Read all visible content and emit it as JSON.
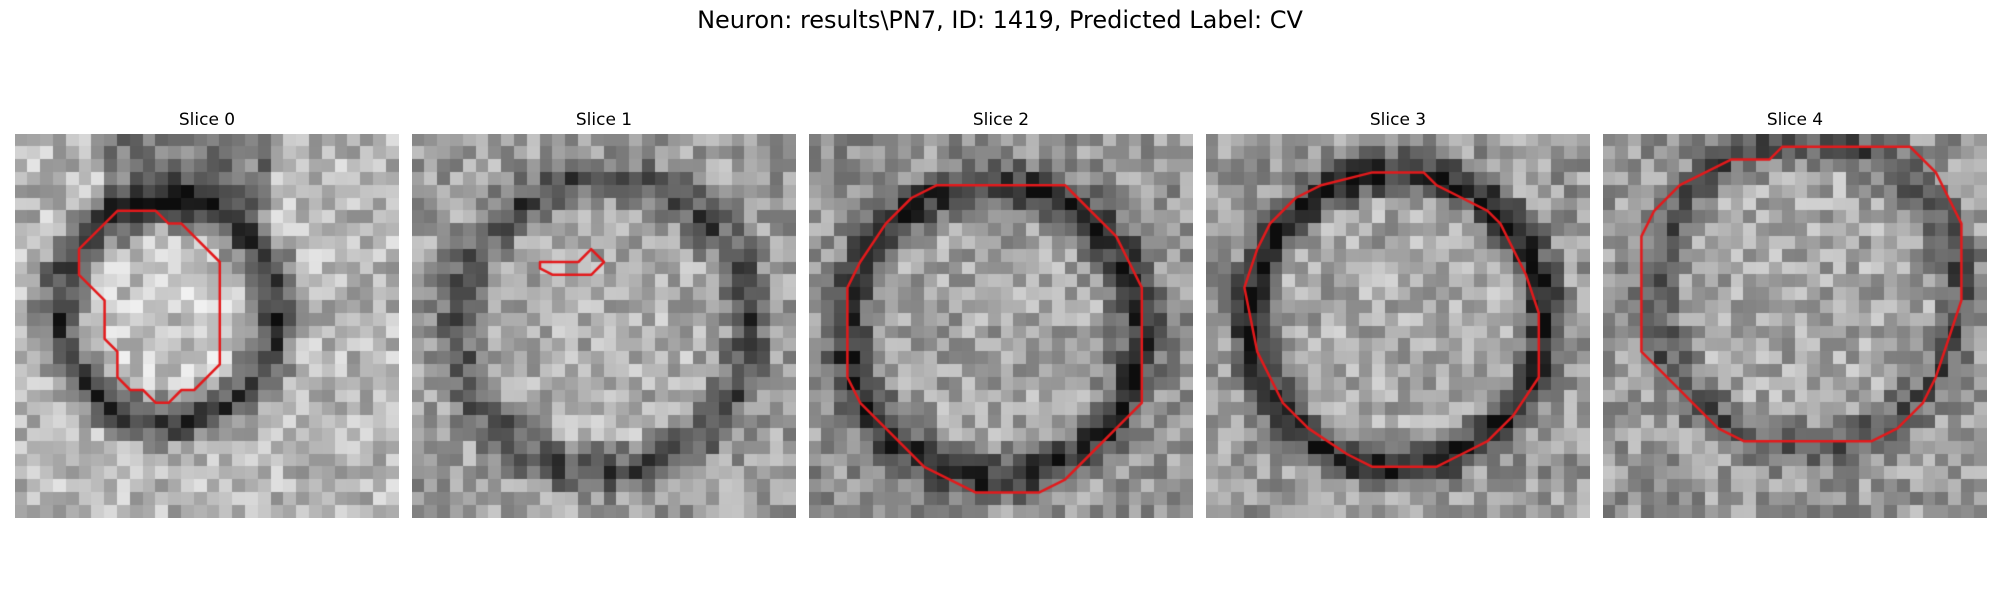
{
  "figure": {
    "title": "Neuron: results\\PN7, ID: 1419, Predicted Label: CV"
  },
  "image_style": {
    "grid_size": 30,
    "colormap": "grayscale",
    "contour_color": "#e31a1c"
  },
  "slices": [
    {
      "title": "Slice 0",
      "contour": [
        [
          8,
          6
        ],
        [
          11,
          6
        ],
        [
          12,
          7
        ],
        [
          13,
          7
        ],
        [
          16,
          10
        ],
        [
          16,
          18
        ],
        [
          14,
          20
        ],
        [
          13,
          20
        ],
        [
          12,
          21
        ],
        [
          11,
          21
        ],
        [
          10,
          20
        ],
        [
          9,
          20
        ],
        [
          8,
          19
        ],
        [
          8,
          17
        ],
        [
          7,
          16
        ],
        [
          7,
          13
        ],
        [
          6,
          12
        ],
        [
          5,
          11
        ],
        [
          5,
          9
        ]
      ]
    },
    {
      "title": "Slice 1",
      "contour": [
        [
          10,
          10
        ],
        [
          13,
          10
        ],
        [
          14,
          9
        ],
        [
          15,
          10
        ],
        [
          14,
          11
        ],
        [
          11,
          11
        ],
        [
          10,
          10.5
        ]
      ]
    },
    {
      "title": "Slice 2",
      "contour": [
        [
          10,
          4
        ],
        [
          20,
          4
        ],
        [
          21,
          5
        ],
        [
          23,
          7
        ],
        [
          24,
          8
        ],
        [
          25,
          10
        ],
        [
          26,
          12
        ],
        [
          26,
          21
        ],
        [
          24,
          23
        ],
        [
          22,
          25
        ],
        [
          20,
          27
        ],
        [
          18,
          28
        ],
        [
          13,
          28
        ],
        [
          11,
          27
        ],
        [
          9,
          26
        ],
        [
          6,
          23
        ],
        [
          4,
          21
        ],
        [
          3,
          19
        ],
        [
          3,
          12
        ],
        [
          4,
          10
        ],
        [
          6,
          7
        ],
        [
          8,
          5
        ]
      ]
    },
    {
      "title": "Slice 3",
      "contour": [
        [
          9,
          4
        ],
        [
          13,
          3
        ],
        [
          17,
          3
        ],
        [
          18,
          4
        ],
        [
          20,
          5
        ],
        [
          22,
          6
        ],
        [
          23,
          7
        ],
        [
          24,
          9
        ],
        [
          25,
          11
        ],
        [
          26,
          14
        ],
        [
          26,
          19
        ],
        [
          24,
          22
        ],
        [
          22,
          24
        ],
        [
          20,
          25
        ],
        [
          18,
          26
        ],
        [
          13,
          26
        ],
        [
          11,
          25
        ],
        [
          8,
          23
        ],
        [
          6,
          21
        ],
        [
          5,
          19
        ],
        [
          4,
          17
        ],
        [
          3,
          12
        ],
        [
          4,
          9
        ],
        [
          5,
          7
        ],
        [
          7,
          5
        ]
      ]
    },
    {
      "title": "Slice 4",
      "contour": [
        [
          10,
          2
        ],
        [
          13,
          2
        ],
        [
          14,
          1
        ],
        [
          24,
          1
        ],
        [
          25,
          2
        ],
        [
          26,
          3
        ],
        [
          27,
          5
        ],
        [
          28,
          7
        ],
        [
          28,
          13
        ],
        [
          27,
          16
        ],
        [
          26,
          19
        ],
        [
          25,
          21
        ],
        [
          23,
          23
        ],
        [
          21,
          24
        ],
        [
          11,
          24
        ],
        [
          9,
          23
        ],
        [
          7,
          21
        ],
        [
          5,
          19
        ],
        [
          3,
          17
        ],
        [
          3,
          8
        ],
        [
          4,
          6
        ],
        [
          6,
          4
        ],
        [
          8,
          3
        ]
      ]
    }
  ]
}
